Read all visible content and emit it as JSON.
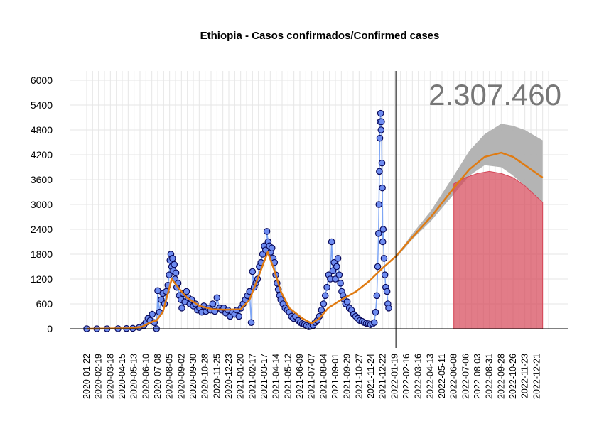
{
  "chart_data": {
    "type": "scatter",
    "title": "Ethiopia - Casos confirmados/Confirmed cases",
    "total_label": "2.307.460",
    "xlabel": "",
    "ylabel": "",
    "ylim": [
      0,
      6000
    ],
    "y_ticks": [
      "0",
      "600",
      "1200",
      "1800",
      "2400",
      "3000",
      "3600",
      "4200",
      "4800",
      "5400",
      "6000"
    ],
    "x_range": [
      "2020-01-22",
      "2023-01-18"
    ],
    "x_ticks": [
      "2020-01-22",
      "2020-02-19",
      "2020-03-18",
      "2020-04-15",
      "2020-05-13",
      "2020-06-10",
      "2020-07-08",
      "2020-08-05",
      "2020-09-02",
      "2020-09-30",
      "2020-10-28",
      "2020-11-25",
      "2020-12-23",
      "2021-01-20",
      "2021-02-17",
      "2021-03-17",
      "2021-04-14",
      "2021-05-12",
      "2021-06-09",
      "2021-07-07",
      "2021-08-04",
      "2021-09-01",
      "2021-09-29",
      "2021-10-27",
      "2021-11-24",
      "2021-12-22",
      "2022-01-19",
      "2022-02-16",
      "2022-03-16",
      "2022-04-13",
      "2022-05-11",
      "2022-06-08",
      "2022-07-06",
      "2022-08-03",
      "2022-08-31",
      "2022-09-28",
      "2022-10-26",
      "2022-11-23",
      "2022-12-21"
    ],
    "grid": true,
    "cutoff_date": "2022-01-22",
    "observed_daily": [
      [
        "2020-01-22",
        0
      ],
      [
        "2020-02-15",
        0
      ],
      [
        "2020-03-10",
        0
      ],
      [
        "2020-04-05",
        2
      ],
      [
        "2020-04-25",
        5
      ],
      [
        "2020-05-10",
        10
      ],
      [
        "2020-05-25",
        30
      ],
      [
        "2020-06-05",
        80
      ],
      [
        "2020-06-10",
        150
      ],
      [
        "2020-06-15",
        250
      ],
      [
        "2020-06-20",
        200
      ],
      [
        "2020-06-25",
        350
      ],
      [
        "2020-06-30",
        150
      ],
      [
        "2020-07-05",
        0
      ],
      [
        "2020-07-08",
        920
      ],
      [
        "2020-07-12",
        400
      ],
      [
        "2020-07-16",
        700
      ],
      [
        "2020-07-20",
        850
      ],
      [
        "2020-07-24",
        600
      ],
      [
        "2020-07-28",
        900
      ],
      [
        "2020-08-01",
        1050
      ],
      [
        "2020-08-04",
        1300
      ],
      [
        "2020-08-06",
        1650
      ],
      [
        "2020-08-08",
        1800
      ],
      [
        "2020-08-10",
        1500
      ],
      [
        "2020-08-12",
        1700
      ],
      [
        "2020-08-14",
        1400
      ],
      [
        "2020-08-16",
        1550
      ],
      [
        "2020-08-18",
        1200
      ],
      [
        "2020-08-20",
        1350
      ],
      [
        "2020-08-22",
        1000
      ],
      [
        "2020-08-25",
        1100
      ],
      [
        "2020-08-28",
        800
      ],
      [
        "2020-09-01",
        700
      ],
      [
        "2020-09-03",
        500
      ],
      [
        "2020-09-06",
        850
      ],
      [
        "2020-09-10",
        650
      ],
      [
        "2020-09-14",
        900
      ],
      [
        "2020-09-18",
        750
      ],
      [
        "2020-09-22",
        600
      ],
      [
        "2020-09-26",
        700
      ],
      [
        "2020-09-30",
        550
      ],
      [
        "2020-10-05",
        600
      ],
      [
        "2020-10-10",
        450
      ],
      [
        "2020-10-15",
        500
      ],
      [
        "2020-10-20",
        400
      ],
      [
        "2020-10-25",
        550
      ],
      [
        "2020-10-30",
        420
      ],
      [
        "2020-11-05",
        500
      ],
      [
        "2020-11-10",
        450
      ],
      [
        "2020-11-15",
        600
      ],
      [
        "2020-11-20",
        420
      ],
      [
        "2020-11-25",
        750
      ],
      [
        "2020-12-01",
        500
      ],
      [
        "2020-12-06",
        450
      ],
      [
        "2020-12-11",
        500
      ],
      [
        "2020-12-16",
        380
      ],
      [
        "2020-12-21",
        450
      ],
      [
        "2020-12-26",
        300
      ],
      [
        "2021-01-01",
        400
      ],
      [
        "2021-01-06",
        350
      ],
      [
        "2021-01-11",
        450
      ],
      [
        "2021-01-16",
        300
      ],
      [
        "2021-01-21",
        500
      ],
      [
        "2021-01-26",
        600
      ],
      [
        "2021-01-31",
        700
      ],
      [
        "2021-02-05",
        800
      ],
      [
        "2021-02-10",
        900
      ],
      [
        "2021-02-14",
        150
      ],
      [
        "2021-02-17",
        1380
      ],
      [
        "2021-02-21",
        1000
      ],
      [
        "2021-02-25",
        1100
      ],
      [
        "2021-03-01",
        1200
      ],
      [
        "2021-03-05",
        1500
      ],
      [
        "2021-03-09",
        1600
      ],
      [
        "2021-03-13",
        1800
      ],
      [
        "2021-03-17",
        2000
      ],
      [
        "2021-03-20",
        1900
      ],
      [
        "2021-03-23",
        2350
      ],
      [
        "2021-03-26",
        2100
      ],
      [
        "2021-03-29",
        2000
      ],
      [
        "2021-04-01",
        1850
      ],
      [
        "2021-04-04",
        1950
      ],
      [
        "2021-04-07",
        1700
      ],
      [
        "2021-04-10",
        1600
      ],
      [
        "2021-04-13",
        1300
      ],
      [
        "2021-04-16",
        1100
      ],
      [
        "2021-04-19",
        950
      ],
      [
        "2021-04-22",
        800
      ],
      [
        "2021-04-25",
        700
      ],
      [
        "2021-04-30",
        600
      ],
      [
        "2021-05-05",
        500
      ],
      [
        "2021-05-10",
        450
      ],
      [
        "2021-05-15",
        400
      ],
      [
        "2021-05-20",
        300
      ],
      [
        "2021-05-25",
        250
      ],
      [
        "2021-05-30",
        300
      ],
      [
        "2021-06-05",
        200
      ],
      [
        "2021-06-10",
        150
      ],
      [
        "2021-06-15",
        120
      ],
      [
        "2021-06-20",
        100
      ],
      [
        "2021-06-25",
        80
      ],
      [
        "2021-06-30",
        50
      ],
      [
        "2021-07-05",
        60
      ],
      [
        "2021-07-10",
        80
      ],
      [
        "2021-07-15",
        150
      ],
      [
        "2021-07-20",
        200
      ],
      [
        "2021-07-25",
        300
      ],
      [
        "2021-07-30",
        450
      ],
      [
        "2021-08-04",
        600
      ],
      [
        "2021-08-08",
        800
      ],
      [
        "2021-08-12",
        1000
      ],
      [
        "2021-08-16",
        1300
      ],
      [
        "2021-08-20",
        1200
      ],
      [
        "2021-08-23",
        2100
      ],
      [
        "2021-08-26",
        1400
      ],
      [
        "2021-08-29",
        1600
      ],
      [
        "2021-09-01",
        1200
      ],
      [
        "2021-09-04",
        1500
      ],
      [
        "2021-09-07",
        1700
      ],
      [
        "2021-09-10",
        1300
      ],
      [
        "2021-09-13",
        1100
      ],
      [
        "2021-09-16",
        900
      ],
      [
        "2021-09-19",
        800
      ],
      [
        "2021-09-22",
        700
      ],
      [
        "2021-09-25",
        600
      ],
      [
        "2021-09-29",
        650
      ],
      [
        "2021-10-04",
        500
      ],
      [
        "2021-10-09",
        450
      ],
      [
        "2021-10-14",
        350
      ],
      [
        "2021-10-19",
        300
      ],
      [
        "2021-10-24",
        250
      ],
      [
        "2021-10-29",
        200
      ],
      [
        "2021-11-03",
        180
      ],
      [
        "2021-11-08",
        150
      ],
      [
        "2021-11-13",
        130
      ],
      [
        "2021-11-18",
        120
      ],
      [
        "2021-11-23",
        100
      ],
      [
        "2021-11-28",
        120
      ],
      [
        "2021-12-02",
        150
      ],
      [
        "2021-12-05",
        400
      ],
      [
        "2021-12-08",
        800
      ],
      [
        "2021-12-10",
        1500
      ],
      [
        "2021-12-12",
        2300
      ],
      [
        "2021-12-13",
        3000
      ],
      [
        "2021-12-14",
        3800
      ],
      [
        "2021-12-15",
        4600
      ],
      [
        "2021-12-16",
        5000
      ],
      [
        "2021-12-17",
        5200
      ],
      [
        "2021-12-18",
        4800
      ],
      [
        "2021-12-19",
        5000
      ],
      [
        "2021-12-20",
        4000
      ],
      [
        "2021-12-21",
        3400
      ],
      [
        "2021-12-22",
        2100
      ],
      [
        "2021-12-23",
        2400
      ],
      [
        "2021-12-25",
        1700
      ],
      [
        "2021-12-27",
        1300
      ],
      [
        "2021-12-29",
        1000
      ],
      [
        "2022-01-01",
        900
      ],
      [
        "2022-01-03",
        600
      ],
      [
        "2022-01-05",
        500
      ]
    ],
    "smoothed_trend": [
      [
        "2020-01-22",
        0
      ],
      [
        "2020-05-01",
        10
      ],
      [
        "2020-06-01",
        50
      ],
      [
        "2020-06-20",
        150
      ],
      [
        "2020-07-05",
        200
      ],
      [
        "2020-07-20",
        400
      ],
      [
        "2020-08-10",
        1200
      ],
      [
        "2020-08-25",
        1000
      ],
      [
        "2020-09-15",
        750
      ],
      [
        "2020-10-15",
        550
      ],
      [
        "2020-11-15",
        470
      ],
      [
        "2020-12-15",
        460
      ],
      [
        "2021-01-20",
        470
      ],
      [
        "2021-02-10",
        700
      ],
      [
        "2021-03-01",
        1200
      ],
      [
        "2021-03-25",
        1850
      ],
      [
        "2021-04-10",
        1400
      ],
      [
        "2021-04-25",
        900
      ],
      [
        "2021-05-15",
        500
      ],
      [
        "2021-06-15",
        250
      ],
      [
        "2021-07-07",
        130
      ],
      [
        "2021-07-25",
        250
      ],
      [
        "2021-08-15",
        500
      ],
      [
        "2021-09-15",
        700
      ],
      [
        "2021-10-20",
        900
      ],
      [
        "2021-11-20",
        1150
      ],
      [
        "2021-12-20",
        1450
      ],
      [
        "2022-01-22",
        1750
      ],
      [
        "2022-03-01",
        2200
      ],
      [
        "2022-04-15",
        2700
      ],
      [
        "2022-06-08",
        3400
      ],
      [
        "2022-07-15",
        3850
      ],
      [
        "2022-08-20",
        4150
      ],
      [
        "2022-09-28",
        4250
      ],
      [
        "2022-10-26",
        4150
      ],
      [
        "2022-11-23",
        3950
      ],
      [
        "2023-01-04",
        3650
      ]
    ],
    "forecast_band": [
      [
        "2022-01-22",
        1700,
        1750
      ],
      [
        "2022-03-01",
        2150,
        2280
      ],
      [
        "2022-04-15",
        2600,
        2850
      ],
      [
        "2022-06-08",
        3250,
        3700
      ],
      [
        "2022-07-15",
        3700,
        4300
      ],
      [
        "2022-08-20",
        3950,
        4700
      ],
      [
        "2022-09-28",
        3900,
        4950
      ],
      [
        "2022-10-26",
        3700,
        4900
      ],
      [
        "2022-11-23",
        3450,
        4800
      ],
      [
        "2023-01-04",
        3050,
        4550
      ]
    ],
    "highlight_band": [
      [
        "2022-06-08",
        0,
        3500
      ],
      [
        "2022-07-06",
        0,
        3650
      ],
      [
        "2022-08-03",
        0,
        3750
      ],
      [
        "2022-08-31",
        0,
        3800
      ],
      [
        "2022-09-28",
        0,
        3750
      ],
      [
        "2022-10-26",
        0,
        3650
      ],
      [
        "2022-11-23",
        0,
        3450
      ],
      [
        "2023-01-04",
        0,
        3050
      ]
    ],
    "colors": {
      "points_fill": "#6E8CF0",
      "points_stroke": "#0A0A5A",
      "observed_line": "#7EA6F5",
      "trend": "#E07B12",
      "band": "#B0B0B0",
      "highlight": "#D64556",
      "grid": "#E6E6E6",
      "total_text": "#777777"
    }
  }
}
